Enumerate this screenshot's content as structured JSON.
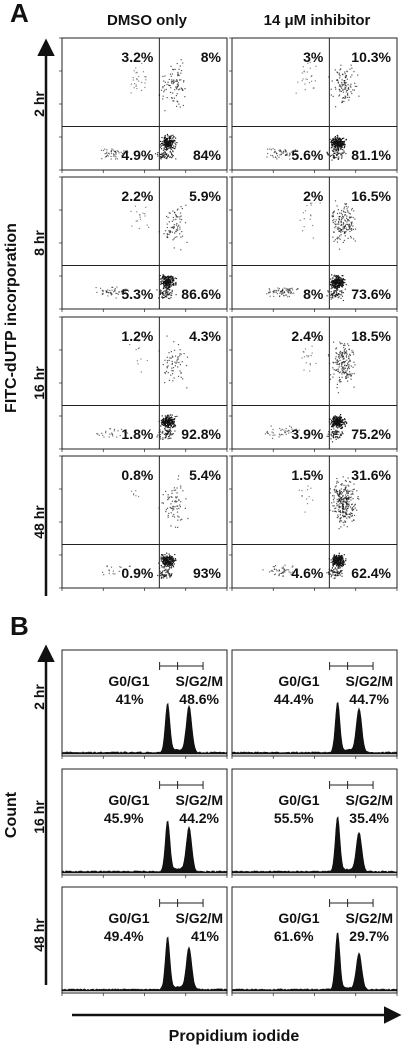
{
  "panel_a": {
    "letter": "A",
    "columns": [
      "DMSO only",
      "14 μM inhibitor"
    ],
    "y_axis_label": "FITC-dUTP incorporation",
    "rows": [
      {
        "time": "2 hr",
        "cells": [
          {
            "ul": "3.2%",
            "ur": "8%",
            "ll": "4.9%",
            "lr": "84%"
          },
          {
            "ul": "3%",
            "ur": "10.3%",
            "ll": "5.6%",
            "lr": "81.1%"
          }
        ]
      },
      {
        "time": "8 hr",
        "cells": [
          {
            "ul": "2.2%",
            "ur": "5.9%",
            "ll": "5.3%",
            "lr": "86.6%"
          },
          {
            "ul": "2%",
            "ur": "16.5%",
            "ll": "8%",
            "lr": "73.6%"
          }
        ]
      },
      {
        "time": "16 hr",
        "cells": [
          {
            "ul": "1.2%",
            "ur": "4.3%",
            "ll": "1.8%",
            "lr": "92.8%"
          },
          {
            "ul": "2.4%",
            "ur": "18.5%",
            "ll": "3.9%",
            "lr": "75.2%"
          }
        ]
      },
      {
        "time": "48 hr",
        "cells": [
          {
            "ul": "0.8%",
            "ur": "5.4%",
            "ll": "0.9%",
            "lr": "93%"
          },
          {
            "ul": "1.5%",
            "ur": "31.6%",
            "ll": "4.6%",
            "lr": "62.4%"
          }
        ]
      }
    ]
  },
  "panel_b": {
    "letter": "B",
    "y_axis_label": "Count",
    "x_axis_label": "Propidium iodide",
    "gate_left_label": "G0/G1",
    "gate_right_label": "S/G2/M",
    "rows": [
      {
        "time": "2 hr",
        "cells": [
          {
            "g0g1": "41%",
            "sg2m": "48.6%"
          },
          {
            "g0g1": "44.4%",
            "sg2m": "44.7%"
          }
        ]
      },
      {
        "time": "16 hr",
        "cells": [
          {
            "g0g1": "45.9%",
            "sg2m": "44.2%"
          },
          {
            "g0g1": "55.5%",
            "sg2m": "35.4%"
          }
        ]
      },
      {
        "time": "48 hr",
        "cells": [
          {
            "g0g1": "49.4%",
            "sg2m": "41%"
          },
          {
            "g0g1": "61.6%",
            "sg2m": "29.7%"
          }
        ]
      }
    ]
  },
  "chart_data": [
    {
      "type": "scatter",
      "title": "",
      "xlabel": "",
      "ylabel": "FITC-dUTP incorporation",
      "x_scale": "log",
      "y_scale": "log",
      "quadrant_percentages_order": [
        "upper-left",
        "upper-right",
        "lower-left",
        "lower-right"
      ],
      "series": [
        {
          "name": "DMSO only",
          "values": [
            [
              3.2,
              8,
              4.9,
              84
            ],
            [
              2.2,
              5.9,
              5.3,
              86.6
            ],
            [
              1.2,
              4.3,
              1.8,
              92.8
            ],
            [
              0.8,
              5.4,
              0.9,
              93
            ]
          ]
        },
        {
          "name": "14 μM inhibitor",
          "values": [
            [
              3,
              10.3,
              5.6,
              81.1
            ],
            [
              2,
              16.5,
              8,
              73.6
            ],
            [
              2.4,
              18.5,
              3.9,
              75.2
            ],
            [
              1.5,
              31.6,
              4.6,
              62.4
            ]
          ]
        }
      ],
      "categories": [
        "2 hr",
        "8 hr",
        "16 hr",
        "48 hr"
      ]
    },
    {
      "type": "area",
      "title": "",
      "xlabel": "Propidium iodide",
      "ylabel": "Count",
      "x_scale": "log",
      "categories": [
        "2 hr",
        "16 hr",
        "48 hr"
      ],
      "series": [
        {
          "name": "DMSO only",
          "g0g1": [
            41,
            45.9,
            49.4
          ],
          "sg2m": [
            48.6,
            44.2,
            41
          ]
        },
        {
          "name": "14 μM inhibitor",
          "g0g1": [
            44.4,
            55.5,
            61.6
          ],
          "sg2m": [
            44.7,
            35.4,
            29.7
          ]
        }
      ]
    }
  ]
}
